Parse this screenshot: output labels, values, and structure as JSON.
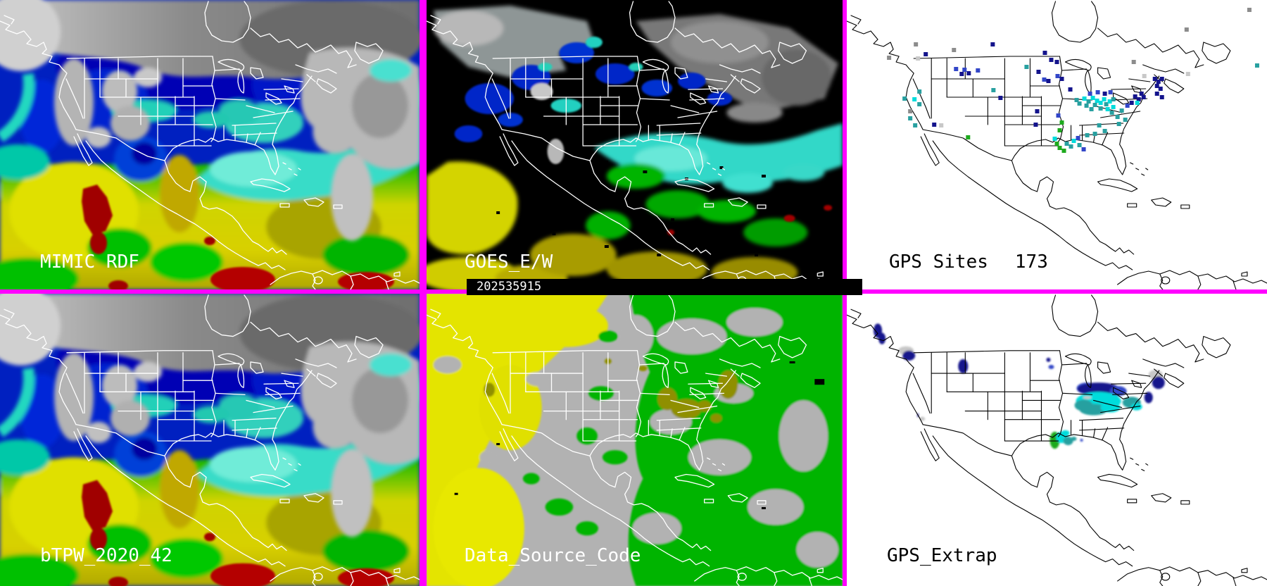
{
  "palette": {
    "divider_magenta": "#ff00ff",
    "goes_background": "#000000",
    "map_background": "#ffffff",
    "data_source_gray": "#b2b2b2",
    "data_source_yellow": "#e6e600",
    "data_source_green": "#00b400",
    "data_source_olive": "#8f8f00",
    "tpw_scale": [
      "#000080",
      "#0020c0",
      "#0040d8",
      "#00d0b8",
      "#40e0d0",
      "#00c000",
      "#e8e800",
      "#c0a000",
      "#a00000"
    ],
    "cloud_gray": "#9a9a9a",
    "dot_colors": {
      "n": "#14148c",
      "b": "#3246c8",
      "t": "#28a0a0",
      "c": "#00dcdc",
      "g": "#1eaa1e",
      "dg": "#0c8c0c",
      "gy": "#8c8c8c",
      "lg": "#c8c8c8"
    }
  },
  "panels": {
    "mimic_rdf": {
      "label": "MIMIC RDF"
    },
    "goes": {
      "label": "GOES_E/W",
      "timestamp": "202535915"
    },
    "gps_sites": {
      "label": "GPS Sites",
      "count": "173",
      "dots": [
        [
          98,
          63,
          "gy"
        ],
        [
          152,
          71,
          "gy"
        ],
        [
          60,
          82,
          "gy"
        ],
        [
          101,
          83,
          "lg"
        ],
        [
          112,
          77,
          "n"
        ],
        [
          207,
          63,
          "n"
        ],
        [
          281,
          75,
          "n"
        ],
        [
          290,
          85,
          "n"
        ],
        [
          298,
          88,
          "n"
        ],
        [
          155,
          98,
          "b"
        ],
        [
          163,
          105,
          "n"
        ],
        [
          167,
          99,
          "b"
        ],
        [
          173,
          104,
          "n"
        ],
        [
          186,
          100,
          "b"
        ],
        [
          255,
          95,
          "t"
        ],
        [
          272,
          102,
          "n"
        ],
        [
          280,
          113,
          "b"
        ],
        [
          286,
          115,
          "n"
        ],
        [
          299,
          108,
          "b"
        ],
        [
          305,
          112,
          "n"
        ],
        [
          317,
          127,
          "n"
        ],
        [
          208,
          128,
          "t"
        ],
        [
          218,
          139,
          "n"
        ],
        [
          270,
          158,
          "n"
        ],
        [
          268,
          177,
          "n"
        ],
        [
          82,
          140,
          "t"
        ],
        [
          96,
          141,
          "c"
        ],
        [
          103,
          130,
          "t"
        ],
        [
          90,
          158,
          "gy"
        ],
        [
          103,
          148,
          "t"
        ],
        [
          90,
          168,
          "t"
        ],
        [
          97,
          178,
          "t"
        ],
        [
          124,
          177,
          "n"
        ],
        [
          134,
          178,
          "lg"
        ],
        [
          172,
          195,
          "g"
        ],
        [
          300,
          164,
          "b"
        ],
        [
          305,
          174,
          "g"
        ],
        [
          302,
          185,
          "g"
        ],
        [
          328,
          196,
          "b"
        ],
        [
          295,
          197,
          "c"
        ],
        [
          298,
          204,
          "g"
        ],
        [
          302,
          210,
          "g"
        ],
        [
          308,
          214,
          "g"
        ],
        [
          312,
          204,
          "t"
        ],
        [
          318,
          208,
          "t"
        ],
        [
          322,
          200,
          "c"
        ],
        [
          330,
          206,
          "t"
        ],
        [
          336,
          212,
          "b"
        ],
        [
          341,
          192,
          "t"
        ],
        [
          352,
          190,
          "t"
        ],
        [
          366,
          186,
          "t"
        ],
        [
          358,
          178,
          "t"
        ],
        [
          326,
          142,
          "t"
        ],
        [
          330,
          147,
          "t"
        ],
        [
          337,
          140,
          "c"
        ],
        [
          343,
          144,
          "t"
        ],
        [
          349,
          139,
          "c"
        ],
        [
          355,
          143,
          "c"
        ],
        [
          352,
          149,
          "t"
        ],
        [
          360,
          146,
          "c"
        ],
        [
          365,
          141,
          "c"
        ],
        [
          368,
          148,
          "t"
        ],
        [
          373,
          144,
          "c"
        ],
        [
          378,
          141,
          "t"
        ],
        [
          360,
          154,
          "t"
        ],
        [
          347,
          155,
          "t"
        ],
        [
          340,
          150,
          "t"
        ],
        [
          370,
          155,
          "c"
        ],
        [
          378,
          152,
          "c"
        ],
        [
          345,
          133,
          "b"
        ],
        [
          356,
          131,
          "b"
        ],
        [
          366,
          133,
          "n"
        ],
        [
          374,
          131,
          "b"
        ],
        [
          376,
          160,
          "t"
        ],
        [
          384,
          166,
          "t"
        ],
        [
          390,
          157,
          "t"
        ],
        [
          395,
          170,
          "t"
        ],
        [
          386,
          176,
          "t"
        ],
        [
          398,
          150,
          "b"
        ],
        [
          404,
          146,
          "n"
        ],
        [
          409,
          137,
          "n"
        ],
        [
          414,
          141,
          "n"
        ],
        [
          418,
          133,
          "n"
        ],
        [
          421,
          138,
          "n"
        ],
        [
          437,
          112,
          "n"
        ],
        [
          442,
          116,
          "n"
        ],
        [
          447,
          112,
          "n"
        ],
        [
          440,
          122,
          "n"
        ],
        [
          445,
          126,
          "n"
        ],
        [
          440,
          133,
          "n"
        ],
        [
          447,
          138,
          "n"
        ],
        [
          412,
          146,
          "c"
        ],
        [
          407,
          88,
          "gy"
        ],
        [
          422,
          108,
          "lg"
        ],
        [
          482,
          42,
          "gy"
        ],
        [
          484,
          105,
          "lg"
        ],
        [
          582,
          93,
          "t"
        ],
        [
          571,
          14,
          "gy"
        ]
      ]
    },
    "btpw": {
      "label": "bTPW_2020_42"
    },
    "data_source": {
      "label": "Data_Source_Code"
    },
    "gps_extrap": {
      "label": "GPS_Extrap",
      "patches": [
        [
          44,
          52,
          6,
          10,
          "n"
        ],
        [
          50,
          63,
          5,
          8,
          "n"
        ],
        [
          84,
          80,
          11,
          6,
          "lg"
        ],
        [
          88,
          87,
          9,
          7,
          "n"
        ],
        [
          165,
          102,
          7,
          10,
          "n"
        ],
        [
          286,
          93,
          3,
          3,
          "n"
        ],
        [
          290,
          103,
          4,
          3,
          "b"
        ],
        [
          340,
          133,
          14,
          8,
          "b"
        ],
        [
          357,
          134,
          30,
          9,
          "n"
        ],
        [
          385,
          137,
          12,
          7,
          "b"
        ],
        [
          357,
          151,
          32,
          13,
          "c"
        ],
        [
          350,
          163,
          20,
          8,
          "t"
        ],
        [
          336,
          157,
          13,
          8,
          "t"
        ],
        [
          374,
          160,
          14,
          7,
          "c"
        ],
        [
          341,
          146,
          6,
          2,
          "lg"
        ],
        [
          404,
          153,
          13,
          8,
          "t"
        ],
        [
          411,
          159,
          8,
          5,
          "c"
        ],
        [
          428,
          146,
          6,
          8,
          "n"
        ],
        [
          438,
          114,
          10,
          7,
          "lg"
        ],
        [
          442,
          125,
          9,
          9,
          "n"
        ],
        [
          295,
          206,
          7,
          12,
          "g"
        ],
        [
          305,
          202,
          8,
          8,
          "c"
        ],
        [
          314,
          207,
          7,
          6,
          "t"
        ],
        [
          322,
          204,
          4,
          3,
          "t"
        ],
        [
          333,
          206,
          2,
          2,
          "b"
        ],
        [
          310,
          196,
          6,
          4,
          "c"
        ],
        [
          107,
          176,
          4,
          3,
          "lg"
        ],
        [
          101,
          171,
          1,
          3,
          "n"
        ]
      ]
    }
  }
}
